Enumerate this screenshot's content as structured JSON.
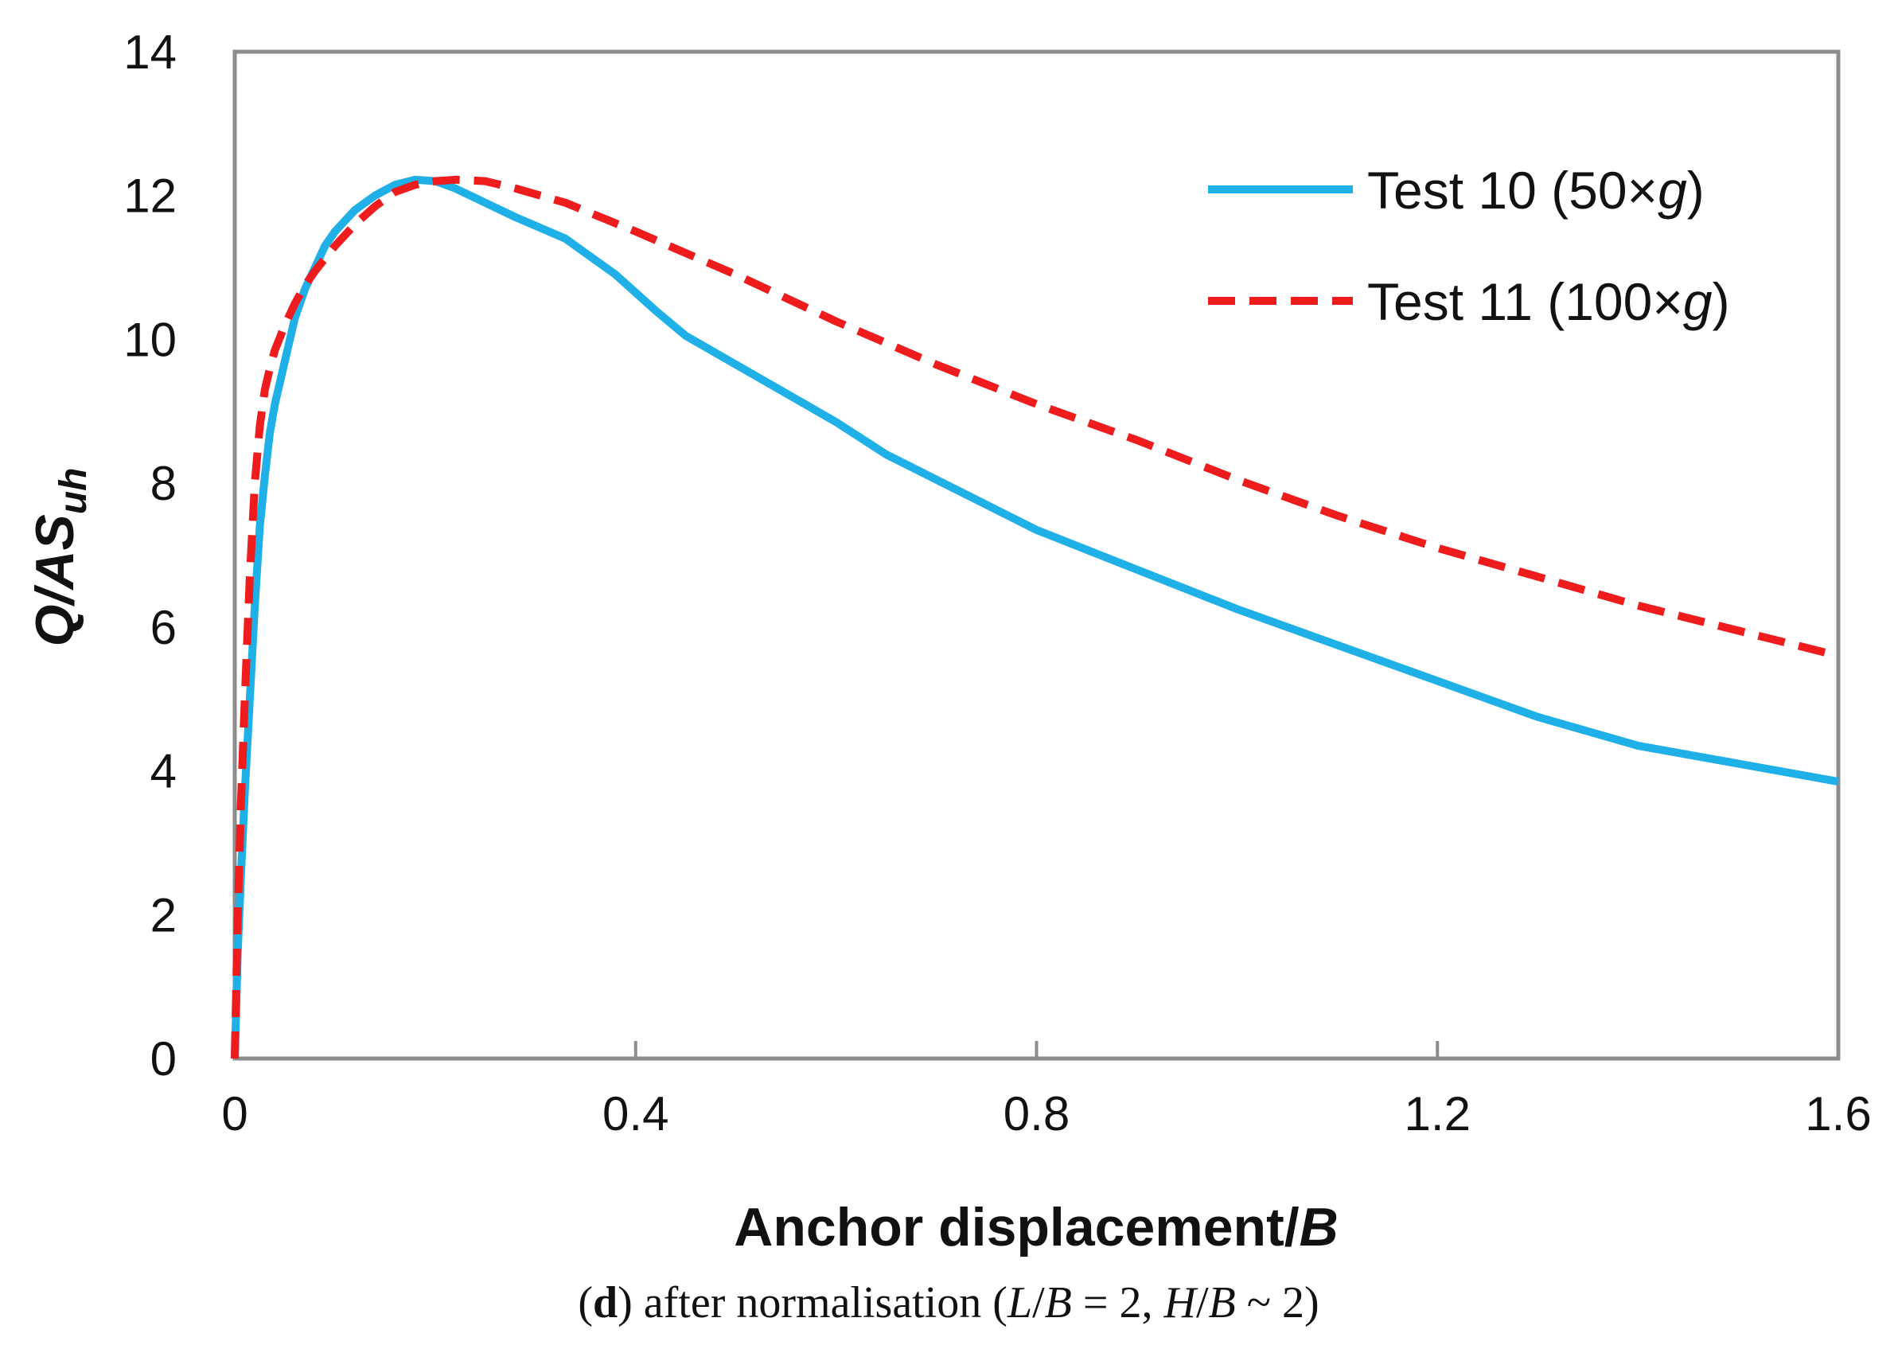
{
  "chart_data": {
    "type": "line",
    "title": "",
    "xlabel": "Anchor displacement/B",
    "ylabel": "Q/AS_uh",
    "ylabel_parts": {
      "main": "Q/AS",
      "sub": "uh"
    },
    "xlim": [
      0,
      1.6
    ],
    "ylim": [
      0,
      14
    ],
    "x_ticks": [
      0,
      0.4,
      0.8,
      1.2,
      1.6
    ],
    "x_tick_labels": [
      "0",
      "0.4",
      "0.8",
      "1.2",
      "1.6"
    ],
    "y_ticks": [
      0,
      2,
      4,
      6,
      8,
      10,
      12,
      14
    ],
    "y_tick_labels": [
      "0",
      "2",
      "4",
      "6",
      "8",
      "10",
      "12",
      "14"
    ],
    "grid": false,
    "legend_position": "top-right",
    "series": [
      {
        "name": "Test 10 (50×g)",
        "label_main": "Test 10",
        "label_paren": "(50×",
        "label_italic": "g",
        "label_close": ")",
        "color": "#1fb0e8",
        "style": "solid",
        "x": [
          0,
          0.003,
          0.006,
          0.01,
          0.015,
          0.02,
          0.025,
          0.03,
          0.035,
          0.04,
          0.05,
          0.06,
          0.07,
          0.08,
          0.09,
          0.1,
          0.12,
          0.14,
          0.16,
          0.18,
          0.2,
          0.22,
          0.25,
          0.28,
          0.33,
          0.38,
          0.42,
          0.45,
          0.5,
          0.55,
          0.6,
          0.65,
          0.7,
          0.8,
          0.9,
          1.0,
          1.1,
          1.2,
          1.3,
          1.4,
          1.5,
          1.6
        ],
        "y": [
          0,
          1.5,
          2.5,
          3.7,
          5.0,
          6.3,
          7.4,
          8.1,
          8.7,
          9.1,
          9.7,
          10.3,
          10.7,
          11.0,
          11.3,
          11.5,
          11.8,
          12.0,
          12.15,
          12.22,
          12.2,
          12.1,
          11.9,
          11.7,
          11.4,
          10.9,
          10.4,
          10.05,
          9.65,
          9.25,
          8.85,
          8.4,
          8.05,
          7.35,
          6.8,
          6.25,
          5.75,
          5.25,
          4.75,
          4.35,
          4.1,
          3.85
        ]
      },
      {
        "name": "Test 11 (100×g)",
        "label_main": "Test 11",
        "label_paren": "(100×",
        "label_italic": "g",
        "label_close": ")",
        "color": "#ee1c1c",
        "style": "dashed",
        "x": [
          0,
          0.003,
          0.006,
          0.01,
          0.015,
          0.02,
          0.025,
          0.03,
          0.035,
          0.04,
          0.05,
          0.06,
          0.07,
          0.08,
          0.1,
          0.12,
          0.14,
          0.16,
          0.18,
          0.2,
          0.22,
          0.25,
          0.28,
          0.33,
          0.4,
          0.5,
          0.6,
          0.7,
          0.8,
          0.9,
          1.0,
          1.1,
          1.2,
          1.3,
          1.4,
          1.5,
          1.6
        ],
        "y": [
          0,
          2.0,
          3.5,
          5.0,
          6.7,
          8.0,
          8.8,
          9.3,
          9.6,
          9.85,
          10.2,
          10.5,
          10.75,
          10.95,
          11.3,
          11.6,
          11.85,
          12.05,
          12.15,
          12.2,
          12.22,
          12.2,
          12.1,
          11.9,
          11.5,
          10.9,
          10.25,
          9.65,
          9.1,
          8.6,
          8.05,
          7.55,
          7.1,
          6.7,
          6.3,
          5.95,
          5.6
        ]
      }
    ],
    "caption": {
      "open": "(",
      "letter": "d",
      "text_1": ") after normalisation (",
      "L": "L",
      "slash_1": "/",
      "B_1": "B",
      "text_2": " = 2, ",
      "H": "H",
      "slash_2": "/",
      "B_2": "B",
      "text_3": " ~ 2)"
    }
  }
}
